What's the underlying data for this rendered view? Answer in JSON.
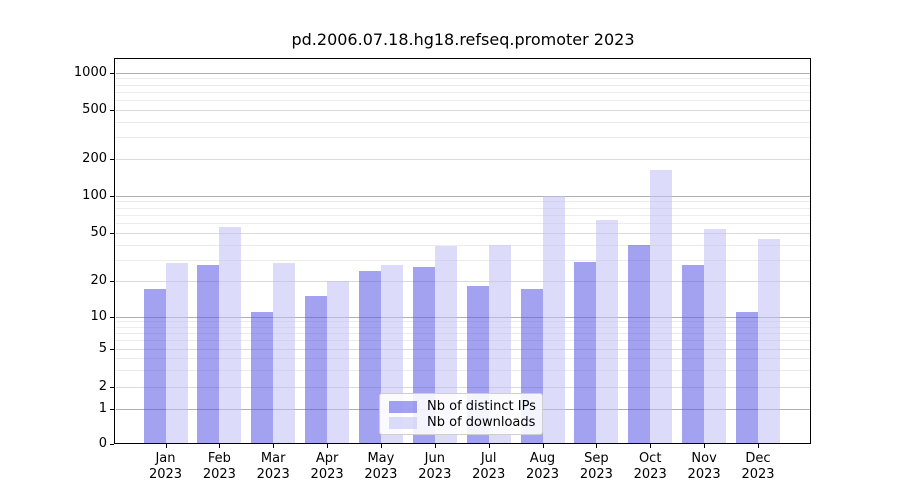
{
  "chart_data": {
    "type": "bar",
    "title": "pd.2006.07.18.hg18.refseq.promoter 2023",
    "categories": [
      "Jan",
      "Feb",
      "Mar",
      "Apr",
      "May",
      "Jun",
      "Jul",
      "Aug",
      "Sep",
      "Oct",
      "Nov",
      "Dec"
    ],
    "year_label": "2023",
    "series": [
      {
        "name": "Nb of distinct IPs",
        "color": "rgba(85,85,228,0.55)",
        "values": [
          17,
          27,
          11,
          15,
          24,
          26,
          18,
          17,
          29,
          40,
          27,
          11
        ]
      },
      {
        "name": "Nb of downloads",
        "color": "rgba(192,192,246,0.55)",
        "values": [
          28,
          56,
          28,
          20,
          27,
          39,
          40,
          100,
          64,
          160,
          54,
          45
        ]
      }
    ],
    "y_axis": {
      "ticks": [
        0,
        1,
        2,
        5,
        10,
        20,
        50,
        100,
        200,
        500,
        1000
      ],
      "scale": "symlog",
      "range": [
        0,
        1000
      ]
    },
    "x_axis": {
      "label_format": "month over year"
    },
    "grid": true,
    "legend_position": "lower center",
    "colors": {
      "grid_major": "#b0b0b0",
      "grid_labeled": "#dadada",
      "grid_minor": "#ececec",
      "spine": "#000000",
      "background": "#ffffff"
    }
  }
}
